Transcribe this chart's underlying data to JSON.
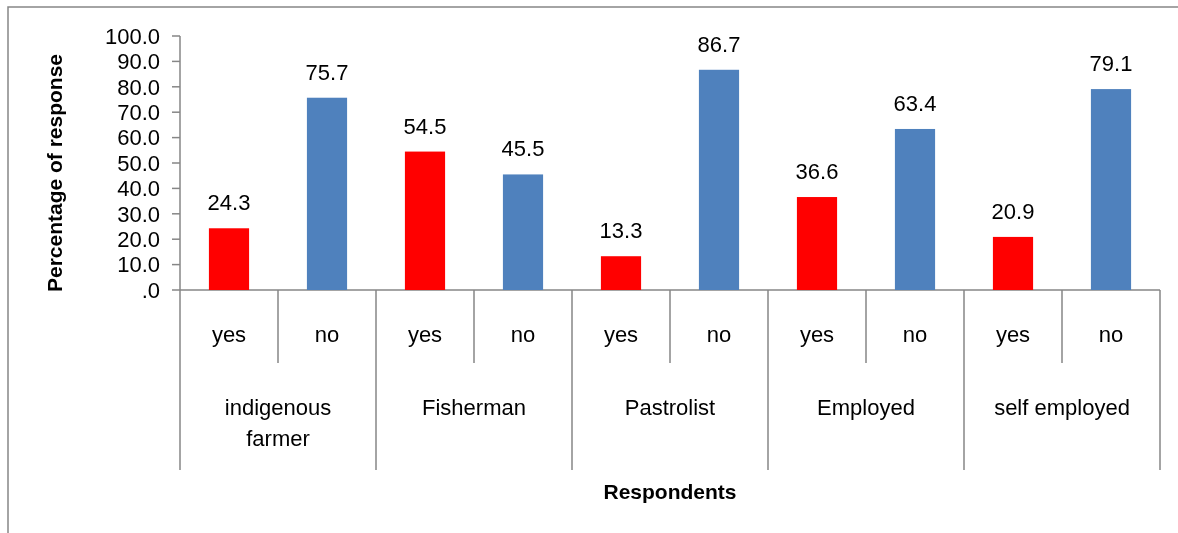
{
  "chart_data": {
    "type": "bar",
    "xlabel": "Respondents",
    "ylabel": "Percentage of response",
    "categories": [
      "indigenous farmer",
      "Fisherman",
      "Pastrolist",
      "Employed",
      "self employed"
    ],
    "series": [
      {
        "name": "yes",
        "color": "#ff0000",
        "values": [
          24.3,
          54.5,
          13.3,
          36.6,
          20.9
        ]
      },
      {
        "name": "no",
        "color": "#4f81bd",
        "values": [
          75.7,
          45.5,
          86.7,
          63.4,
          79.1
        ]
      }
    ],
    "ylim": [
      0,
      100
    ],
    "yticks": [
      {
        "value": 0,
        "label": ".0"
      },
      {
        "value": 10,
        "label": "10.0"
      },
      {
        "value": 20,
        "label": "20.0"
      },
      {
        "value": 30,
        "label": "30.0"
      },
      {
        "value": 40,
        "label": "40.0"
      },
      {
        "value": 50,
        "label": "50.0"
      },
      {
        "value": 60,
        "label": "60.0"
      },
      {
        "value": 70,
        "label": "70.0"
      },
      {
        "value": 80,
        "label": "80.0"
      },
      {
        "value": 90,
        "label": "90.0"
      },
      {
        "value": 100,
        "label": "100.0"
      }
    ],
    "data_labels": true
  }
}
